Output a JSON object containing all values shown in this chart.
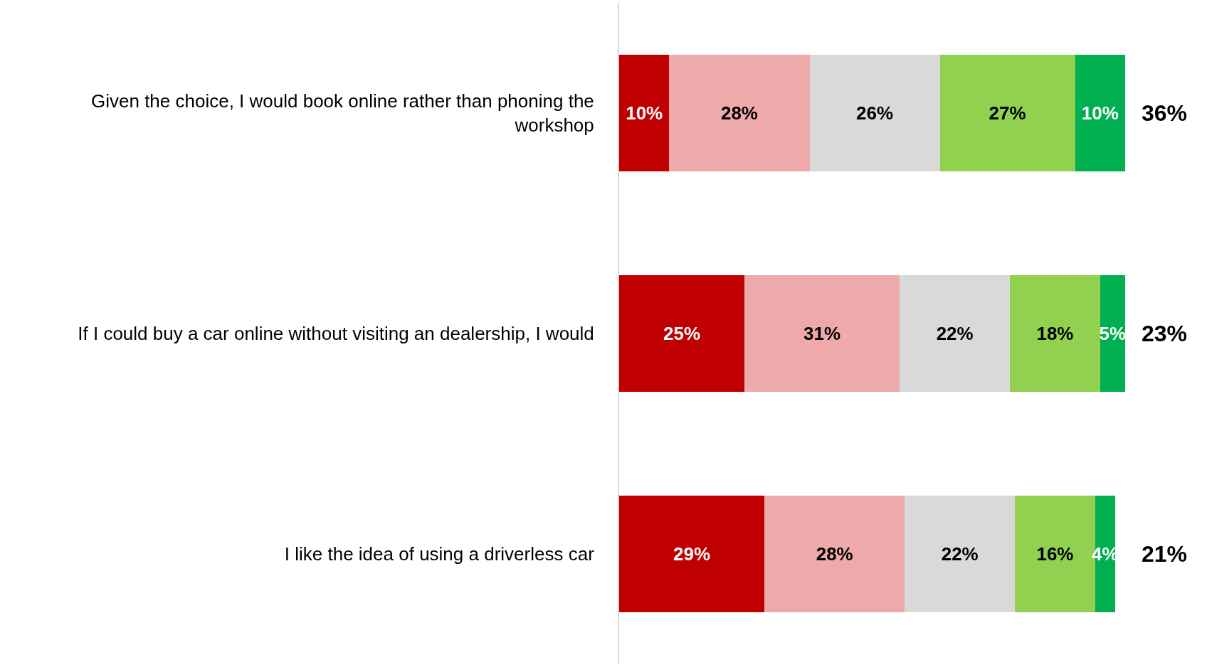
{
  "chart_data": {
    "type": "bar",
    "orientation": "horizontal",
    "stacked": true,
    "categories": [
      "Given the choice, I would book online rather than phoning the workshop",
      "If I could buy a car online without visiting an dealership, I would",
      "I like the idea of using a driverless car"
    ],
    "xlim": [
      0,
      101
    ],
    "series": [
      {
        "color": "#c00000",
        "values": [
          10,
          25,
          29
        ],
        "value_labels": [
          "10%",
          "25%",
          "29%"
        ]
      },
      {
        "color": "#eeaaaa",
        "values": [
          28,
          31,
          28
        ],
        "value_labels": [
          "28%",
          "31%",
          "28%"
        ]
      },
      {
        "color": "#d9d9d9",
        "values": [
          26,
          22,
          22
        ],
        "value_labels": [
          "26%",
          "22%",
          "22%"
        ]
      },
      {
        "color": "#92d050",
        "values": [
          27,
          18,
          16
        ],
        "value_labels": [
          "27%",
          "18%",
          "16%"
        ]
      },
      {
        "color": "#00b050",
        "values": [
          10,
          5,
          4
        ],
        "value_labels": [
          "10%",
          "5%",
          "4%"
        ]
      }
    ],
    "annotations": [
      "36%",
      "23%",
      "21%"
    ]
  }
}
